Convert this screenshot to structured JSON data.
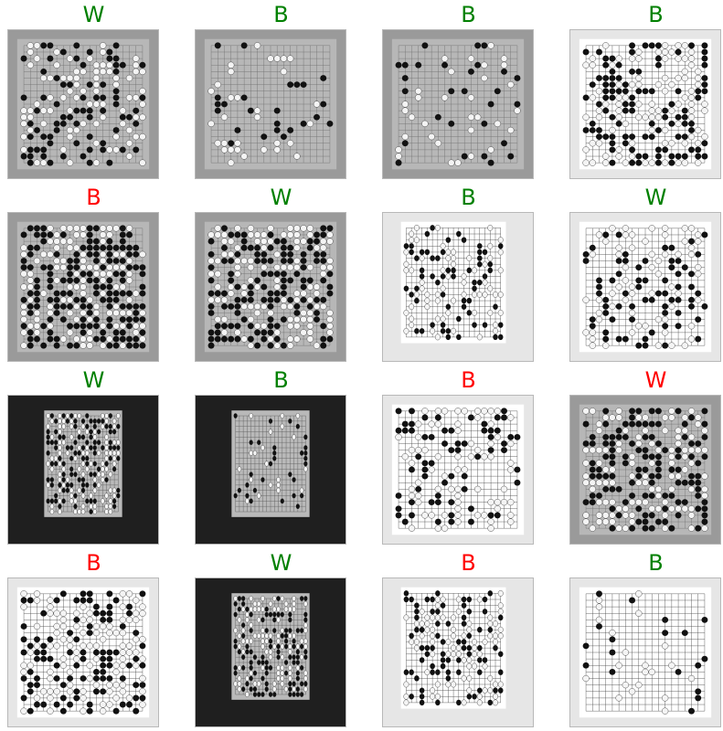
{
  "colors": {
    "correct": "#008000",
    "incorrect": "#ff0000"
  },
  "panels": [
    {
      "label": "W",
      "correct": true,
      "style": "gray"
    },
    {
      "label": "B",
      "correct": true,
      "style": "gray"
    },
    {
      "label": "B",
      "correct": true,
      "style": "gray"
    },
    {
      "label": "B",
      "correct": true,
      "style": "white"
    },
    {
      "label": "B",
      "correct": false,
      "style": "gray"
    },
    {
      "label": "W",
      "correct": true,
      "style": "gray"
    },
    {
      "label": "B",
      "correct": true,
      "style": "white"
    },
    {
      "label": "W",
      "correct": true,
      "style": "white"
    },
    {
      "label": "W",
      "correct": true,
      "style": "dark"
    },
    {
      "label": "B",
      "correct": true,
      "style": "dark"
    },
    {
      "label": "B",
      "correct": false,
      "style": "white"
    },
    {
      "label": "W",
      "correct": false,
      "style": "gray"
    },
    {
      "label": "B",
      "correct": false,
      "style": "white"
    },
    {
      "label": "W",
      "correct": true,
      "style": "dark"
    },
    {
      "label": "B",
      "correct": false,
      "style": "white"
    },
    {
      "label": "B",
      "correct": true,
      "style": "white"
    }
  ]
}
